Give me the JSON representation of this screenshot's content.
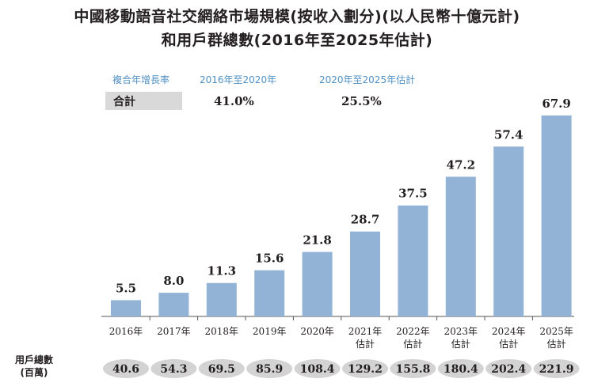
{
  "title": {
    "line1": "中國移動語音社交網絡市場規模(按收入劃分)(以人民幣十億元計)",
    "line2": "和用戶群總數(2016年至2025年估計)"
  },
  "cagr": {
    "header_label": "複合年增長率",
    "period1": "2016年至2020年",
    "period2": "2020年至2025年估計",
    "row_label": "合計",
    "value1": "41.0%",
    "value2": "25.5%"
  },
  "users_row": {
    "label_line1": "用戶總數",
    "label_line2": "(百萬)"
  },
  "colors": {
    "bar": "#93b3d6",
    "cagr_header": "#4f90c4",
    "pill": "#d3d3d3",
    "axis": "#555555"
  },
  "chart_data": {
    "type": "bar",
    "categories": [
      [
        "2016年"
      ],
      [
        "2017年"
      ],
      [
        "2018年"
      ],
      [
        "2019年"
      ],
      [
        "2020年"
      ],
      [
        "2021年",
        "估計"
      ],
      [
        "2022年",
        "估計"
      ],
      [
        "2023年",
        "估計"
      ],
      [
        "2024年",
        "估計"
      ],
      [
        "2025年",
        "估計"
      ]
    ],
    "values": [
      5.5,
      8.0,
      11.3,
      15.6,
      21.8,
      28.7,
      37.5,
      47.2,
      57.4,
      67.9
    ],
    "value_labels": [
      "5.5",
      "8.0",
      "11.3",
      "15.6",
      "21.8",
      "28.7",
      "37.5",
      "47.2",
      "57.4",
      "67.9"
    ],
    "users_total": [
      "40.6",
      "54.3",
      "69.5",
      "85.9",
      "108.4",
      "129.2",
      "155.8",
      "180.4",
      "202.4",
      "221.9"
    ],
    "ylim": [
      0,
      70
    ],
    "grid": false
  }
}
